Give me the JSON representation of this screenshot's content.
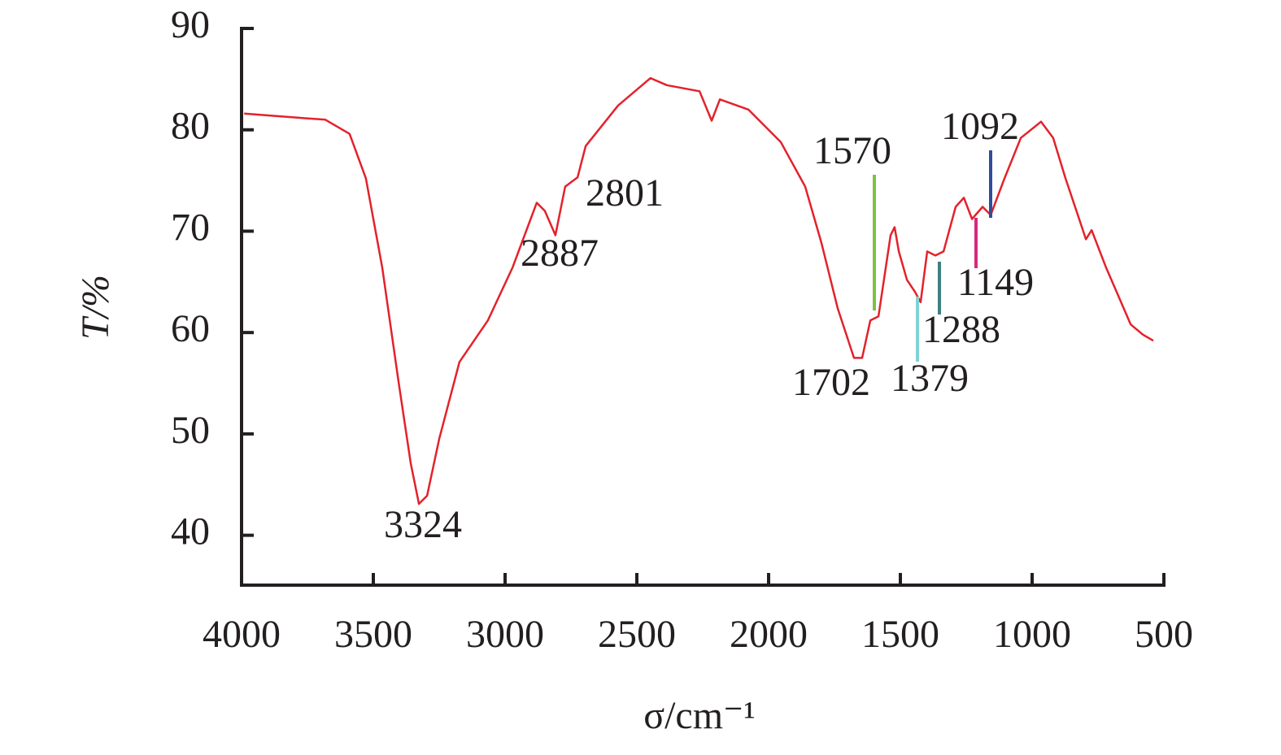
{
  "chart_data": {
    "type": "line",
    "xlabel": "σ/cm⁻¹",
    "ylabel": "T/%",
    "xlim": [
      4000,
      500
    ],
    "ylim": [
      35,
      90
    ],
    "xticks": [
      4000,
      3500,
      3000,
      2500,
      2000,
      1500,
      1000,
      500
    ],
    "yticks": [
      40,
      50,
      60,
      70,
      80,
      90
    ],
    "x": [
      3990,
      3682,
      3590,
      3528,
      3466,
      3404,
      3358,
      3327,
      3296,
      3250,
      3173,
      3065,
      2972,
      2880,
      2849,
      2809,
      2772,
      2725,
      2694,
      2571,
      2448,
      2386,
      2262,
      2216,
      2185,
      2077,
      1954,
      1861,
      1799,
      1738,
      1676,
      1645,
      1614,
      1583,
      1537,
      1522,
      1506,
      1475,
      1444,
      1423,
      1398,
      1367,
      1336,
      1290,
      1259,
      1228,
      1188,
      1157,
      1105,
      1043,
      966,
      920,
      873,
      811,
      796,
      774,
      719,
      626,
      580,
      540
    ],
    "series": [
      {
        "name": "T",
        "color": "#e3222b",
        "values": [
          81.6,
          81.0,
          79.6,
          75.2,
          66.4,
          55.1,
          47.1,
          43.1,
          43.9,
          49.5,
          57.1,
          61.2,
          66.4,
          72.8,
          72.0,
          69.6,
          74.4,
          75.3,
          78.4,
          82.4,
          85.1,
          84.4,
          83.8,
          80.9,
          83.0,
          82.0,
          78.8,
          74.4,
          68.8,
          62.4,
          57.5,
          57.5,
          61.2,
          61.6,
          69.6,
          70.4,
          68.0,
          65.2,
          64.0,
          63.0,
          68.0,
          67.6,
          68.0,
          72.4,
          73.3,
          71.2,
          72.4,
          71.6,
          75.2,
          79.2,
          80.8,
          79.2,
          75.2,
          70.4,
          69.2,
          70.1,
          66.4,
          60.8,
          59.8,
          59.2
        ]
      }
    ],
    "annotations": [
      {
        "text": "3324"
      },
      {
        "text": "2887"
      },
      {
        "text": "2801"
      },
      {
        "text": "1702"
      },
      {
        "text": "1570",
        "color": "#7dc242"
      },
      {
        "text": "1379",
        "color": "#7fd3d5"
      },
      {
        "text": "1288",
        "color": "#3f7f7f"
      },
      {
        "text": "1149",
        "color": "#d6287f"
      },
      {
        "text": "1092",
        "color": "#2e4d9b"
      }
    ]
  }
}
